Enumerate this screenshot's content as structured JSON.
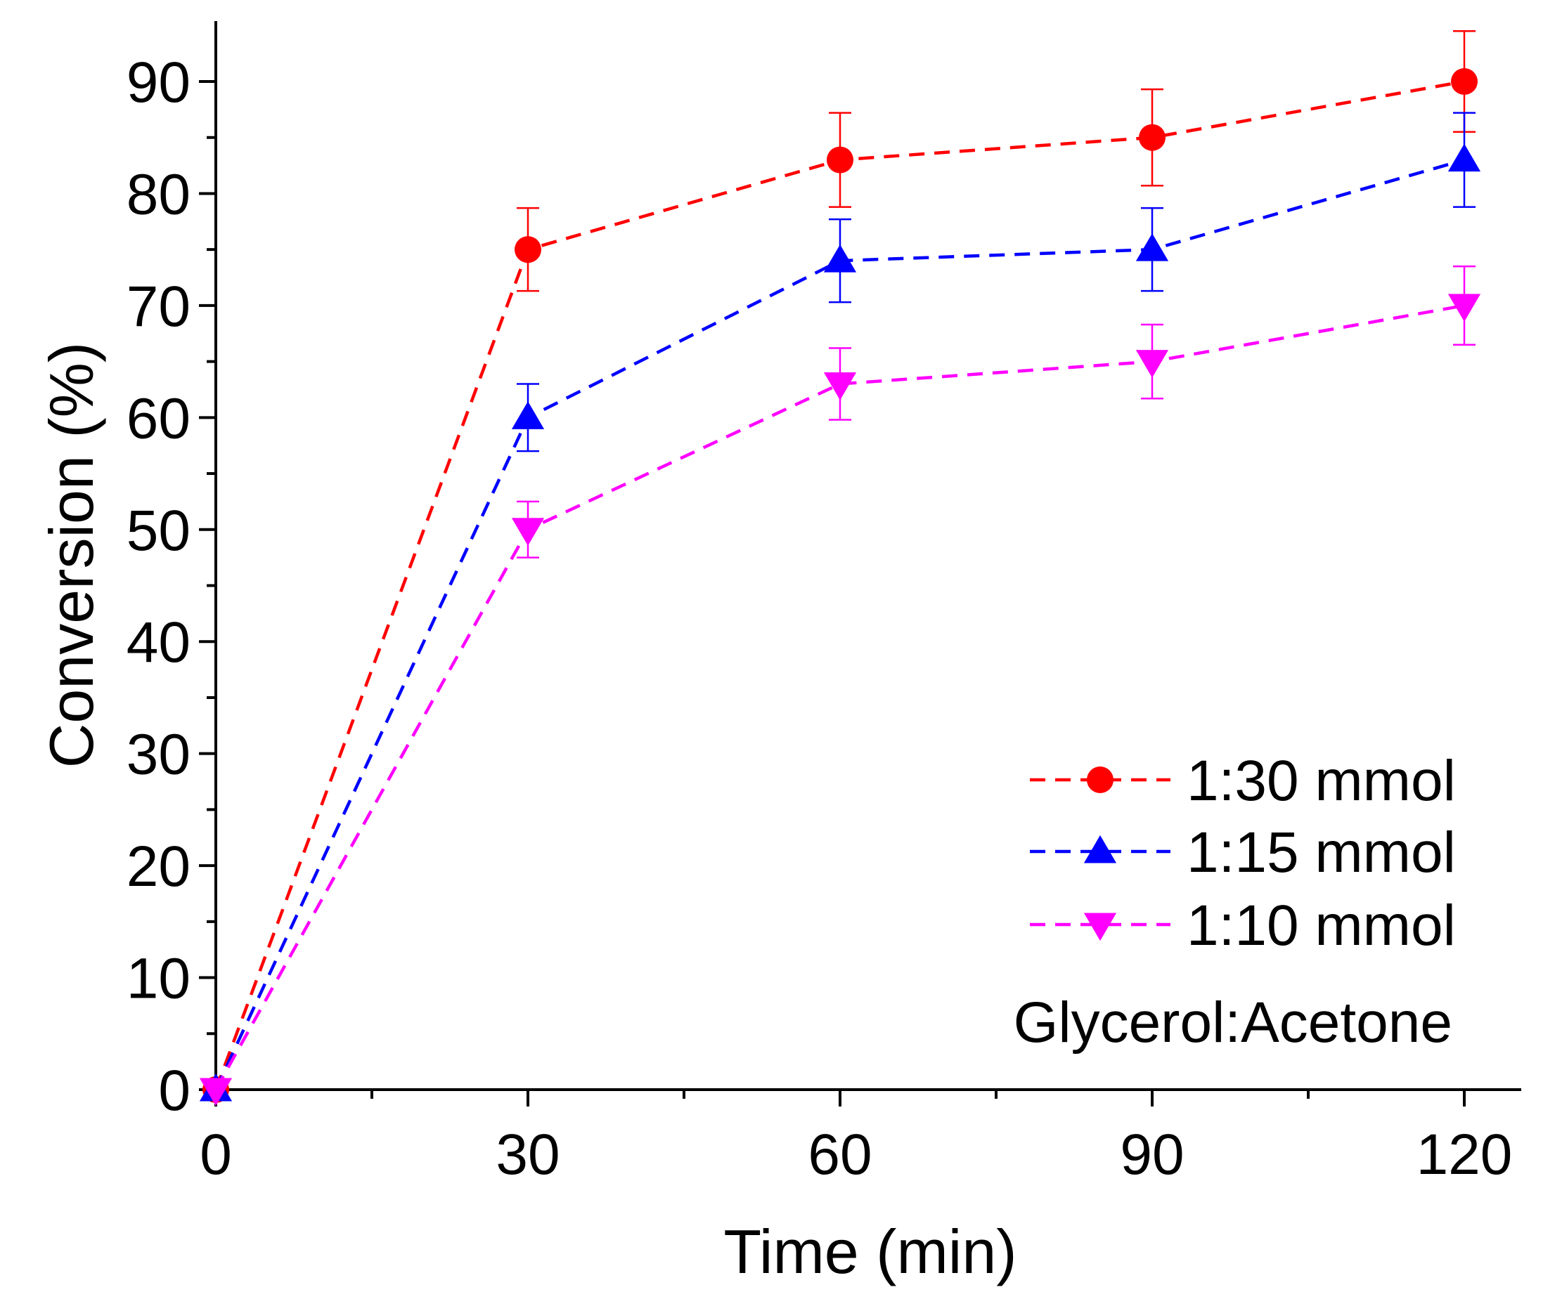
{
  "chart_data": {
    "type": "line",
    "title": "",
    "xlabel": "Time (min)",
    "ylabel": "Conversion (%)",
    "xlim": [
      0,
      125
    ],
    "ylim": [
      0,
      95
    ],
    "x_ticks": [
      0,
      30,
      60,
      90,
      120
    ],
    "x_tick_labels": [
      "0",
      "30",
      "60",
      "90",
      "120"
    ],
    "y_ticks": [
      0,
      10,
      20,
      30,
      40,
      50,
      60,
      70,
      80,
      90
    ],
    "y_tick_labels": [
      "0",
      "10",
      "20",
      "30",
      "40",
      "50",
      "60",
      "70",
      "80",
      "90"
    ],
    "x": [
      0,
      30,
      60,
      90,
      120
    ],
    "grid": false,
    "legend_position": "bottom-right",
    "series": [
      {
        "name": "1:30 mmol",
        "color": "#ff0000",
        "marker": "circle",
        "line_style": "dashed",
        "values": [
          0,
          75,
          83,
          85,
          90
        ],
        "errors": [
          0,
          3.7,
          4.2,
          4.3,
          4.5
        ]
      },
      {
        "name": "1:15 mmol",
        "color": "#0000ff",
        "marker": "triangle-up",
        "line_style": "dashed",
        "values": [
          0,
          60,
          74,
          75,
          83
        ],
        "errors": [
          0,
          3.0,
          3.7,
          3.7,
          4.2
        ]
      },
      {
        "name": "1:10 mmol",
        "color": "#ff00ff",
        "marker": "triangle-down",
        "line_style": "dashed",
        "values": [
          0,
          50,
          63,
          65,
          70
        ],
        "errors": [
          0,
          2.5,
          3.2,
          3.3,
          3.5
        ]
      }
    ],
    "annotations": [
      "Glycerol:Acetone"
    ]
  }
}
